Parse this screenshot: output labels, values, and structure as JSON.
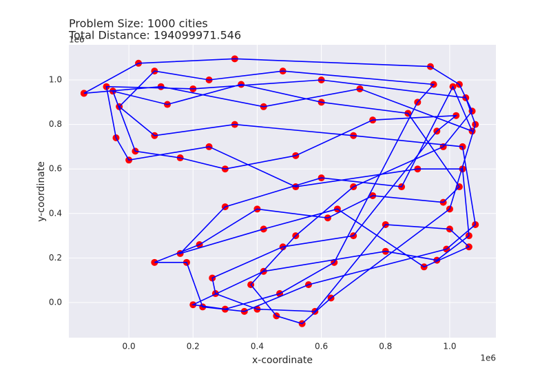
{
  "chart_data": {
    "type": "line",
    "title_lines": [
      "Problem Size: 1000 cities",
      "Total Distance: 194099971.546"
    ],
    "x_label": "x-coordinate",
    "y_label": "y-coordinate",
    "x_offset_label": "1e6",
    "y_offset_label": "1e6",
    "grid": true,
    "xlim": [
      -187000,
      1144000
    ],
    "ylim": [
      -158000,
      1158000
    ],
    "xticks": [
      {
        "value": 0,
        "label": "0.0"
      },
      {
        "value": 200000,
        "label": "0.2"
      },
      {
        "value": 400000,
        "label": "0.4"
      },
      {
        "value": 600000,
        "label": "0.6"
      },
      {
        "value": 800000,
        "label": "0.8"
      },
      {
        "value": 1000000,
        "label": "1.0"
      }
    ],
    "yticks": [
      {
        "value": 0,
        "label": "0.0"
      },
      {
        "value": 200000,
        "label": "0.2"
      },
      {
        "value": 400000,
        "label": "0.4"
      },
      {
        "value": 600000,
        "label": "0.6"
      },
      {
        "value": 800000,
        "label": "0.8"
      },
      {
        "value": 1000000,
        "label": "1.0"
      }
    ],
    "x": [
      -140000,
      30000,
      330000,
      940000,
      1030000,
      1070000,
      980000,
      700000,
      520000,
      380000,
      460000,
      540000,
      630000,
      1000000,
      1080000,
      1050000,
      600000,
      200000,
      -70000,
      -40000,
      0,
      250000,
      520000,
      900000,
      1040000,
      1060000,
      960000,
      800000,
      420000,
      200000,
      300000,
      470000,
      640000,
      900000,
      950000,
      480000,
      250000,
      80000,
      -30000,
      80000,
      330000,
      700000,
      1040000,
      1080000,
      990000,
      560000,
      360000,
      230000,
      180000,
      80000,
      220000,
      400000,
      620000,
      760000,
      980000,
      1030000,
      870000,
      600000,
      350000,
      120000,
      -50000,
      20000,
      160000,
      300000,
      520000,
      760000,
      1020000,
      960000,
      700000,
      480000,
      260000,
      270000,
      400000,
      580000,
      800000,
      1000000,
      1060000,
      920000,
      650000,
      420000,
      160000,
      300000,
      600000,
      850000,
      1010000,
      1070000,
      720000,
      420000,
      100000,
      -140000
    ],
    "series": [
      {
        "color": "#0000ff",
        "marker_color": "#ff0000",
        "values": [
          940000,
          1075000,
          1095000,
          1060000,
          980000,
          860000,
          700000,
          520000,
          300000,
          80000,
          -60000,
          -95000,
          20000,
          420000,
          800000,
          920000,
          1000000,
          960000,
          970000,
          740000,
          640000,
          700000,
          520000,
          600000,
          600000,
          300000,
          190000,
          230000,
          140000,
          -10000,
          -30000,
          40000,
          180000,
          900000,
          980000,
          1040000,
          1000000,
          1040000,
          880000,
          750000,
          800000,
          750000,
          700000,
          350000,
          240000,
          80000,
          -40000,
          -20000,
          180000,
          180000,
          260000,
          420000,
          380000,
          480000,
          450000,
          520000,
          850000,
          900000,
          980000,
          890000,
          950000,
          680000,
          650000,
          600000,
          660000,
          820000,
          840000,
          770000,
          300000,
          250000,
          110000,
          40000,
          -30000,
          -40000,
          350000,
          330000,
          250000,
          160000,
          420000,
          330000,
          220000,
          430000,
          560000,
          520000,
          970000,
          770000,
          960000,
          880000,
          970000,
          940000
        ]
      }
    ]
  }
}
